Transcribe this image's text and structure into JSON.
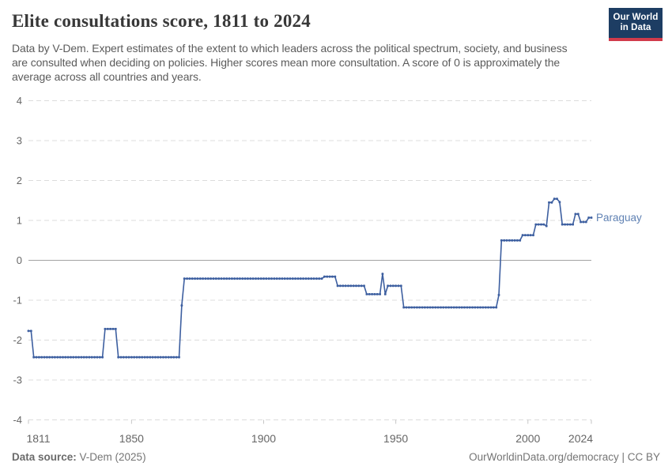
{
  "header": {
    "title": "Elite consultations score, 1811 to 2024",
    "subtitle": "Data by V-Dem. Expert estimates of the extent to which leaders across the political spectrum, society, and business are consulted when deciding on policies. Higher scores mean more consultation. A score of 0 is approximately the average across all countries and years.",
    "logo": {
      "line1": "Our World",
      "line2": "in Data",
      "bg_color": "#1d3d63",
      "accent_color": "#d13b4b"
    }
  },
  "chart_data": {
    "type": "line",
    "title": "Elite consultations score, 1811 to 2024",
    "entity_label": "Paraguay",
    "x_range": [
      1811,
      2024
    ],
    "y_range": [
      -4,
      4
    ],
    "x_ticks": [
      1811,
      1850,
      1900,
      1950,
      2000,
      2024
    ],
    "y_ticks": [
      4,
      3,
      2,
      1,
      0,
      -1,
      -2,
      -3,
      -4
    ],
    "grid": "horizontal-dashed",
    "zero_line": true,
    "legend_position": "end-of-line",
    "line_color": "#3d5fa0",
    "entity_label_color": "#5f81b3",
    "grid_color": "#dcdcdc",
    "zero_line_color": "#a3a3a3",
    "tick_color": "#c6c6c6",
    "tick_text_color": "#666666",
    "segments": [
      {
        "from": 1811,
        "to": 1812,
        "value": -1.77
      },
      {
        "from": 1813,
        "to": 1839,
        "value": -2.43
      },
      {
        "from": 1840,
        "to": 1844,
        "value": -1.72
      },
      {
        "from": 1845,
        "to": 1868,
        "value": -2.43
      },
      {
        "from": 1869,
        "to": 1869,
        "value": -1.13
      },
      {
        "from": 1870,
        "to": 1922,
        "value": -0.46
      },
      {
        "from": 1923,
        "to": 1927,
        "value": -0.41
      },
      {
        "from": 1928,
        "to": 1938,
        "value": -0.64
      },
      {
        "from": 1939,
        "to": 1944,
        "value": -0.85
      },
      {
        "from": 1945,
        "to": 1945,
        "value": -0.34
      },
      {
        "from": 1946,
        "to": 1946,
        "value": -0.85
      },
      {
        "from": 1947,
        "to": 1952,
        "value": -0.64
      },
      {
        "from": 1953,
        "to": 1988,
        "value": -1.18
      },
      {
        "from": 1989,
        "to": 1989,
        "value": -0.87
      },
      {
        "from": 1990,
        "to": 1997,
        "value": 0.5
      },
      {
        "from": 1998,
        "to": 2002,
        "value": 0.63
      },
      {
        "from": 2003,
        "to": 2006,
        "value": 0.9
      },
      {
        "from": 2007,
        "to": 2007,
        "value": 0.86
      },
      {
        "from": 2008,
        "to": 2009,
        "value": 1.45
      },
      {
        "from": 2010,
        "to": 2011,
        "value": 1.54
      },
      {
        "from": 2012,
        "to": 2012,
        "value": 1.46
      },
      {
        "from": 2013,
        "to": 2017,
        "value": 0.9
      },
      {
        "from": 2018,
        "to": 2019,
        "value": 1.16
      },
      {
        "from": 2020,
        "to": 2022,
        "value": 0.96
      },
      {
        "from": 2023,
        "to": 2024,
        "value": 1.07
      }
    ]
  },
  "footer": {
    "source_label": "Data source:",
    "source_value": " V-Dem (2025)",
    "credit": "OurWorldinData.org/democracy | CC BY"
  }
}
